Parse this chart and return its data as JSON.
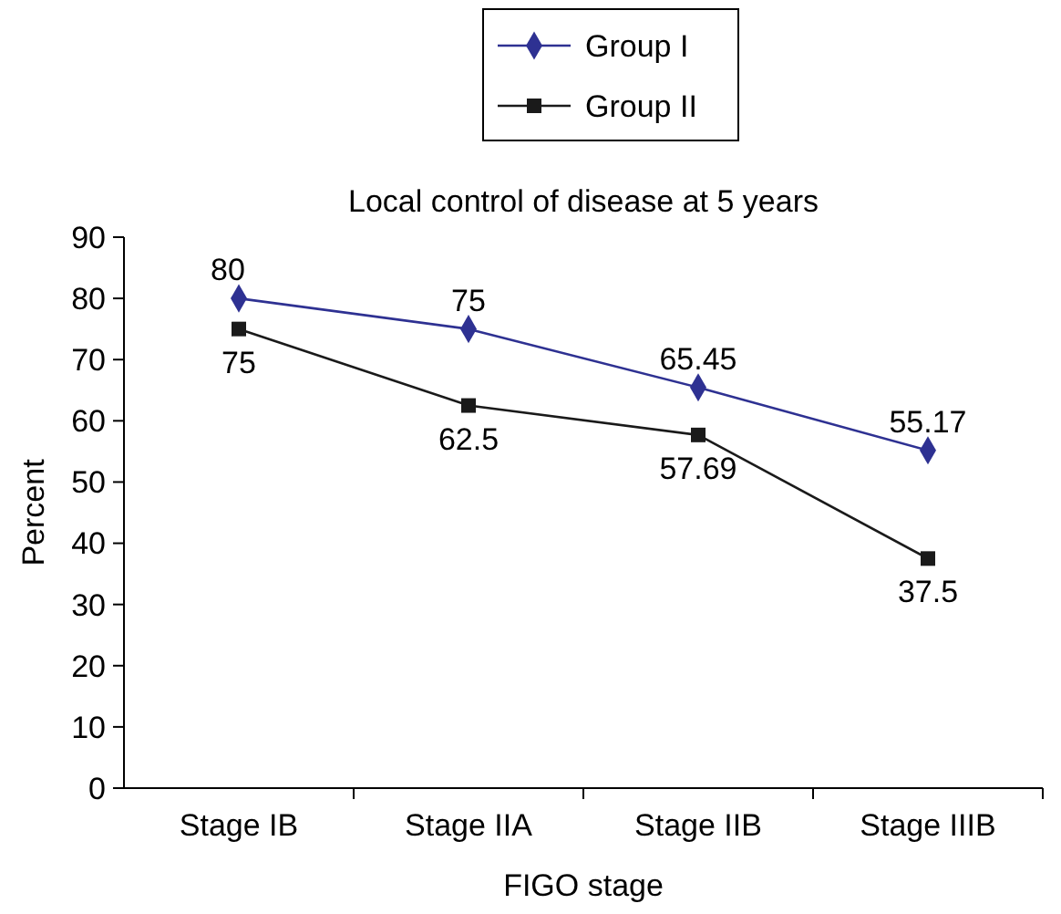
{
  "chart_data": {
    "type": "line",
    "title": "Local control of disease at 5 years",
    "xlabel": "FIGO stage",
    "ylabel": "Percent",
    "categories": [
      "Stage IB",
      "Stage IIA",
      "Stage IIB",
      "Stage IIIB"
    ],
    "series": [
      {
        "name": "Group I",
        "color": "#2e3192",
        "marker": "diamond",
        "values": [
          80,
          75,
          65.45,
          55.17
        ]
      },
      {
        "name": "Group II",
        "color": "#1a1a1a",
        "marker": "square",
        "values": [
          75,
          62.5,
          57.69,
          37.5
        ]
      }
    ],
    "ylim": [
      0,
      90
    ],
    "yticks": [
      0,
      10,
      20,
      30,
      40,
      50,
      60,
      70,
      80,
      90
    ],
    "grid": false,
    "legend": "top",
    "data_labels": true,
    "line_style": "solid"
  }
}
